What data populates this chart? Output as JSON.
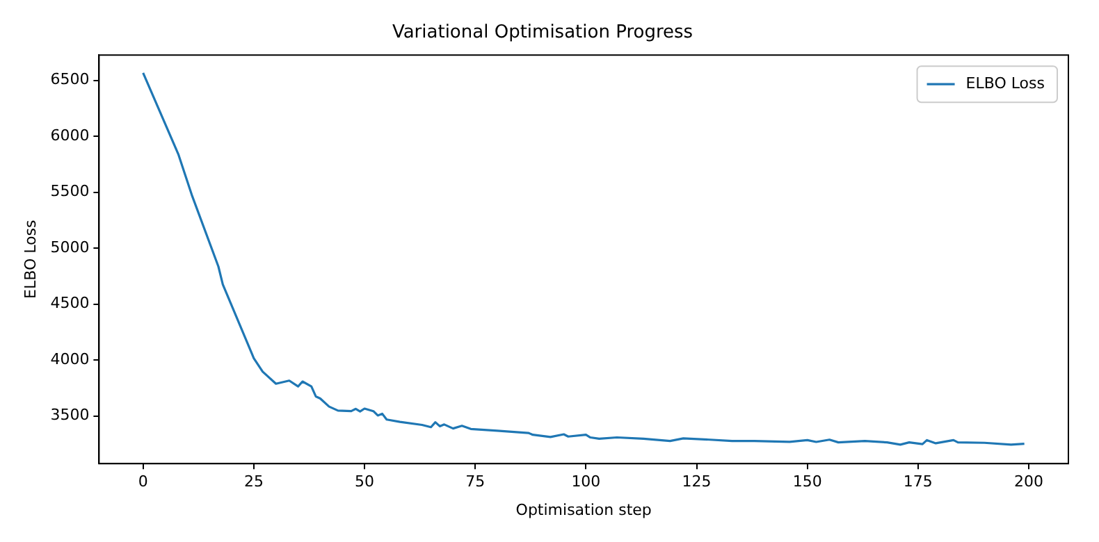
{
  "chart_data": {
    "type": "line",
    "title": "Variational Optimisation Progress",
    "xlabel": "Optimisation step",
    "ylabel": "ELBO Loss",
    "series": [
      {
        "name": "ELBO Loss",
        "color": "#1f77b4",
        "x": [
          0,
          8,
          11,
          17,
          18,
          25,
          27,
          30,
          33,
          35,
          36,
          38,
          39,
          40,
          42,
          44,
          47,
          48,
          49,
          50,
          52,
          53,
          54,
          55,
          58,
          63,
          65,
          66,
          67,
          68,
          70,
          72,
          74,
          80,
          87,
          88,
          92,
          95,
          96,
          100,
          101,
          103,
          107,
          113,
          119,
          122,
          128,
          133,
          138,
          146,
          150,
          152,
          155,
          157,
          163,
          168,
          171,
          173,
          176,
          177,
          179,
          183,
          184,
          190,
          196,
          199
        ],
        "values": [
          6567,
          5835,
          5475,
          4836,
          4676,
          4016,
          3896,
          3788,
          3816,
          3764,
          3808,
          3764,
          3675,
          3656,
          3584,
          3548,
          3543,
          3564,
          3540,
          3566,
          3543,
          3504,
          3520,
          3468,
          3447,
          3420,
          3400,
          3444,
          3408,
          3424,
          3388,
          3412,
          3384,
          3368,
          3348,
          3332,
          3312,
          3336,
          3316,
          3332,
          3308,
          3296,
          3308,
          3296,
          3276,
          3300,
          3288,
          3276,
          3276,
          3268,
          3284,
          3268,
          3288,
          3264,
          3276,
          3264,
          3244,
          3264,
          3248,
          3284,
          3256,
          3284,
          3264,
          3260,
          3244,
          3252
        ]
      }
    ],
    "xlim": [
      -9.95,
      208.95
    ],
    "xticks": [
      0,
      25,
      50,
      75,
      100,
      125,
      150,
      175,
      200
    ],
    "ylim": [
      3074,
      6726
    ],
    "yticks": [
      3500,
      4000,
      4500,
      5000,
      5500,
      6000,
      6500
    ],
    "legend": "top right",
    "grid": false,
    "marker": "none",
    "line_style": "solid"
  }
}
